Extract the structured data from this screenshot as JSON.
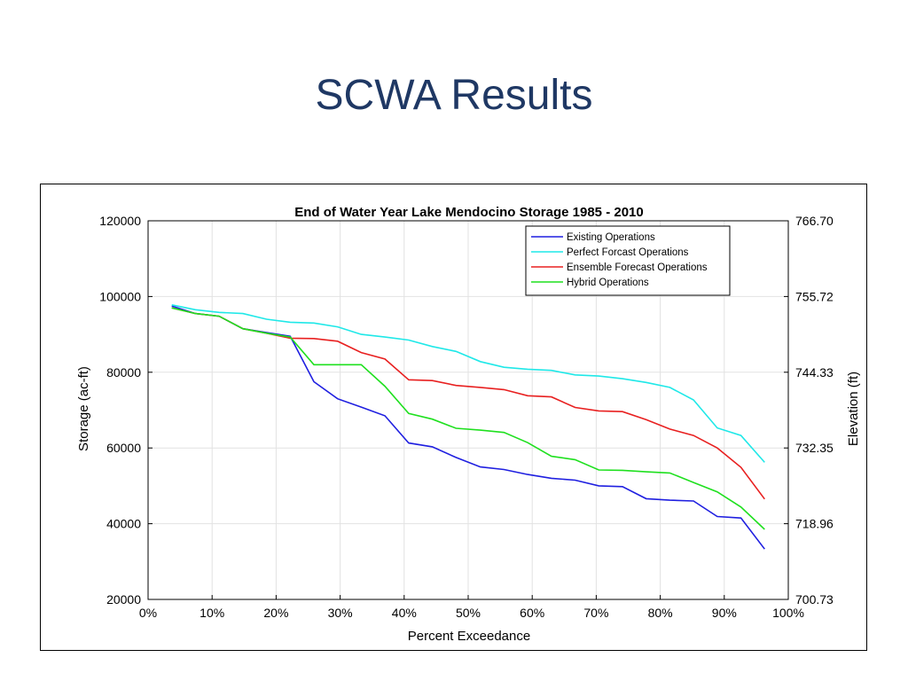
{
  "slide": {
    "title": "SCWA Results"
  },
  "chart_data": {
    "type": "line",
    "title": "End of Water Year Lake Mendocino Storage 1985 - 2010",
    "xlabel": "Percent Exceedance",
    "ylabel": "Storage (ac-ft)",
    "ylabel_right": "Elevation (ft)",
    "xlim": [
      0,
      100
    ],
    "ylim": [
      20000,
      120000
    ],
    "x_ticks": [
      0,
      10,
      20,
      30,
      40,
      50,
      60,
      70,
      80,
      90,
      100
    ],
    "x_tick_labels": [
      "0%",
      "10%",
      "20%",
      "30%",
      "40%",
      "50%",
      "60%",
      "70%",
      "80%",
      "90%",
      "100%"
    ],
    "y_ticks": [
      20000,
      40000,
      60000,
      80000,
      100000,
      120000
    ],
    "y_tick_labels": [
      "20000",
      "40000",
      "60000",
      "80000",
      "100000",
      "120000"
    ],
    "y_right_tick_labels": [
      "700.73",
      "718.96",
      "732.35",
      "744.33",
      "755.72",
      "766.70"
    ],
    "grid": true,
    "legend_position": "top-right",
    "x": [
      3.7,
      7.4,
      11.1,
      14.8,
      18.5,
      22.2,
      25.9,
      29.6,
      33.3,
      37.0,
      40.7,
      44.4,
      48.1,
      51.9,
      55.6,
      59.3,
      63.0,
      66.7,
      70.4,
      74.1,
      77.8,
      81.5,
      85.2,
      88.9,
      92.6,
      96.3
    ],
    "series": [
      {
        "name": "Existing Operations",
        "color": "#1f1fe0",
        "values": [
          97500,
          95500,
          94800,
          91500,
          90500,
          89500,
          77500,
          73000,
          70800,
          68500,
          61300,
          60300,
          57500,
          55000,
          54300,
          53000,
          52000,
          51500,
          50000,
          49800,
          46600,
          46200,
          46000,
          41900,
          41500,
          33300
        ]
      },
      {
        "name": "Perfect Forcast Operations",
        "color": "#1fe8e8",
        "values": [
          97800,
          96500,
          95800,
          95500,
          94000,
          93200,
          93000,
          92000,
          90000,
          89300,
          88500,
          86800,
          85500,
          82800,
          81300,
          80800,
          80500,
          79300,
          79000,
          78300,
          77300,
          76000,
          72700,
          65300,
          63300,
          56200
        ]
      },
      {
        "name": "Ensemble Forecast Operations",
        "color": "#e82020",
        "values": [
          97000,
          95500,
          94800,
          91500,
          90300,
          89000,
          88900,
          88200,
          85200,
          83500,
          78000,
          77800,
          76500,
          76000,
          75400,
          73800,
          73500,
          70700,
          69800,
          69600,
          67500,
          65000,
          63300,
          60000,
          54900,
          46500
        ]
      },
      {
        "name": "Hybrid Operations",
        "color": "#1fe01f",
        "values": [
          97000,
          95500,
          94800,
          91500,
          90300,
          89300,
          82000,
          82000,
          82000,
          76300,
          69100,
          67600,
          65200,
          64700,
          64100,
          61400,
          57800,
          56900,
          54200,
          54100,
          53700,
          53400,
          50900,
          48400,
          44400,
          38500
        ]
      }
    ]
  }
}
